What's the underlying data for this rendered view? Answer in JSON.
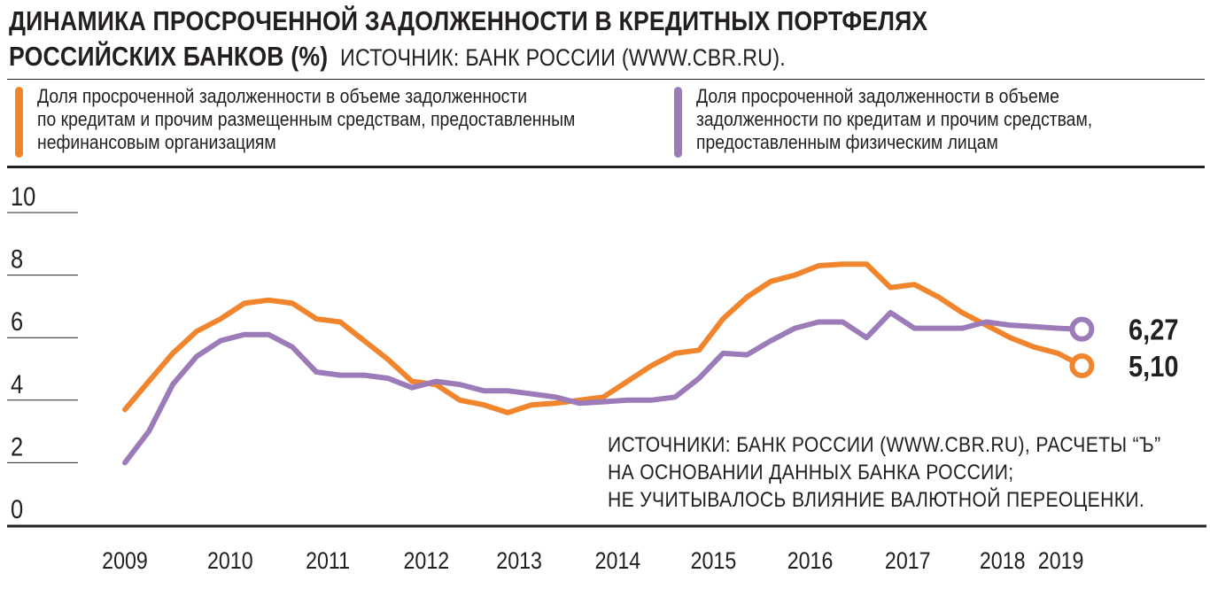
{
  "header": {
    "title_line1": "ДИНАМИКА ПРОСРОЧЕННОЙ ЗАДОЛЖЕННОСТИ В КРЕДИТНЫХ ПОРТФЕЛЯХ",
    "title_line2": "РОССИЙСКИХ БАНКОВ (%)",
    "source": "ИСТОЧНИК: БАНК РОССИИ (WWW.CBR.RU)."
  },
  "legend": [
    {
      "color": "#f0852d",
      "lines": [
        "Доля просроченной задолженности в объеме задолженности",
        "по кредитам и прочим размещенным средствам, предоставленным",
        "нефинансовым организациям"
      ]
    },
    {
      "color": "#9b7bb8",
      "lines": [
        "Доля просроченной задолженности в объеме",
        "задолженности по кредитам и прочим средствам,",
        "предоставленным физическим лицам"
      ]
    }
  ],
  "footnote": [
    "ИСТОЧНИКИ: БАНК РОССИИ (WWW.CBR.RU), РАСЧЕТЫ “Ъ”",
    "НА ОСНОВАНИИ ДАННЫХ БАНКА РОССИИ;",
    "НЕ УЧИТЫВАЛОСЬ ВЛИЯНИЕ ВАЛЮТНОЙ ПЕРЕОЦЕНКИ."
  ],
  "chart_data": {
    "type": "line",
    "title": "Динамика просроченной задолженности в кредитных портфелях российских банков (%)",
    "xlabel": "",
    "ylabel": "",
    "ylim": [
      0,
      10
    ],
    "yticks": [
      "0",
      "2",
      "4",
      "6",
      "8",
      "10"
    ],
    "xlim": [
      2009,
      2019.2
    ],
    "xticks": [
      {
        "label": "2009",
        "pos": 2009.0
      },
      {
        "label": "2010",
        "pos": 2010.1
      },
      {
        "label": "2011",
        "pos": 2011.12
      },
      {
        "label": "2012",
        "pos": 2012.15
      },
      {
        "label": "2013",
        "pos": 2013.12
      },
      {
        "label": "2014",
        "pos": 2014.15
      },
      {
        "label": "2015",
        "pos": 2015.15
      },
      {
        "label": "2016",
        "pos": 2016.16
      },
      {
        "label": "2017",
        "pos": 2017.18
      },
      {
        "label": "2018",
        "pos": 2018.17
      },
      {
        "label": "2019",
        "pos": 2018.78
      }
    ],
    "series": [
      {
        "name": "Нефинансовые организации",
        "color": "#f0852d",
        "end_label": "5,10",
        "x": [
          2009.0,
          2009.25,
          2009.5,
          2009.75,
          2010.0,
          2010.25,
          2010.5,
          2010.75,
          2011.0,
          2011.25,
          2011.5,
          2011.75,
          2012.0,
          2012.25,
          2012.5,
          2012.75,
          2013.0,
          2013.25,
          2013.5,
          2013.75,
          2014.0,
          2014.25,
          2014.5,
          2014.75,
          2015.0,
          2015.25,
          2015.5,
          2015.75,
          2016.0,
          2016.25,
          2016.5,
          2016.75,
          2017.0,
          2017.25,
          2017.5,
          2017.75,
          2018.0,
          2018.25,
          2018.5,
          2018.75,
          2019.0
        ],
        "values": [
          3.7,
          4.6,
          5.5,
          6.2,
          6.6,
          7.1,
          7.2,
          7.1,
          6.6,
          6.5,
          5.9,
          5.3,
          4.6,
          4.5,
          4.0,
          3.85,
          3.6,
          3.85,
          3.9,
          4.0,
          4.1,
          4.6,
          5.1,
          5.5,
          5.6,
          6.6,
          7.3,
          7.8,
          8.0,
          8.3,
          8.35,
          8.35,
          7.6,
          7.7,
          7.3,
          6.8,
          6.4,
          6.0,
          5.7,
          5.5,
          5.1
        ]
      },
      {
        "name": "Физические лица",
        "color": "#9b7bb8",
        "end_label": "6,27",
        "x": [
          2009.0,
          2009.25,
          2009.5,
          2009.75,
          2010.0,
          2010.25,
          2010.5,
          2010.75,
          2011.0,
          2011.25,
          2011.5,
          2011.75,
          2012.0,
          2012.25,
          2012.5,
          2012.75,
          2013.0,
          2013.25,
          2013.5,
          2013.75,
          2014.0,
          2014.25,
          2014.5,
          2014.75,
          2015.0,
          2015.25,
          2015.5,
          2015.75,
          2016.0,
          2016.25,
          2016.5,
          2016.75,
          2017.0,
          2017.25,
          2017.5,
          2017.75,
          2018.0,
          2018.25,
          2018.5,
          2018.75,
          2019.0
        ],
        "values": [
          2.0,
          3.0,
          4.5,
          5.4,
          5.9,
          6.1,
          6.1,
          5.7,
          4.9,
          4.8,
          4.8,
          4.7,
          4.4,
          4.6,
          4.5,
          4.3,
          4.3,
          4.2,
          4.1,
          3.9,
          3.95,
          4.0,
          4.0,
          4.1,
          4.7,
          5.5,
          5.45,
          5.9,
          6.3,
          6.5,
          6.5,
          6.0,
          6.8,
          6.3,
          6.3,
          6.3,
          6.5,
          6.4,
          6.35,
          6.3,
          6.27
        ]
      }
    ],
    "grid": false,
    "legend_position": "top"
  }
}
